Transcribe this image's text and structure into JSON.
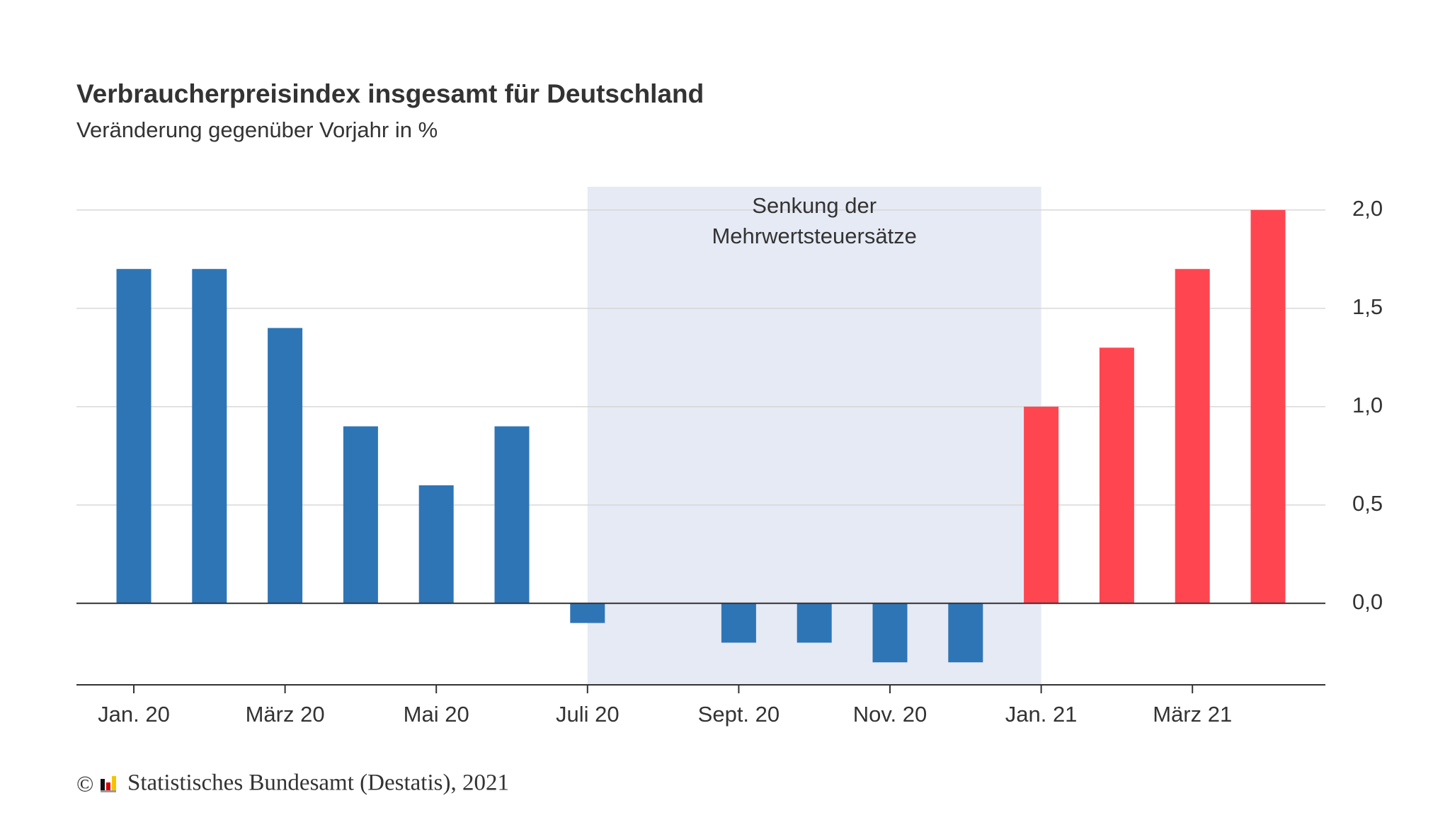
{
  "chart_data": {
    "type": "bar",
    "title": "Verbraucherpreisindex insgesamt für Deutschland",
    "subtitle": "Veränderung gegenüber Vorjahr in %",
    "categories": [
      "Jan. 20",
      null,
      "März 20",
      null,
      "Mai 20",
      null,
      "Juli 20",
      null,
      "Sept. 20",
      null,
      "Nov. 20",
      null,
      "Jan. 21",
      null,
      "März 21",
      null
    ],
    "values": [
      1.7,
      1.7,
      1.4,
      0.9,
      0.6,
      0.9,
      -0.1,
      0.0,
      -0.2,
      -0.2,
      -0.3,
      -0.3,
      1.0,
      1.3,
      1.7,
      2.0
    ],
    "colors": [
      "#2e75b6",
      "#2e75b6",
      "#2e75b6",
      "#2e75b6",
      "#2e75b6",
      "#2e75b6",
      "#2e75b6",
      "#2e75b6",
      "#2e75b6",
      "#2e75b6",
      "#2e75b6",
      "#2e75b6",
      "#ff4650",
      "#ff4650",
      "#ff4650",
      "#ff4650"
    ],
    "ylim": [
      -0.4,
      2.1
    ],
    "yticks": [
      {
        "value": 0,
        "label": "0,0"
      },
      {
        "value": 0.5,
        "label": "0,5"
      },
      {
        "value": 1,
        "label": "1,0"
      },
      {
        "value": 1.5,
        "label": "1,5"
      },
      {
        "value": 2,
        "label": "2,0"
      }
    ],
    "grid": true,
    "shade": {
      "start": "Juli 20",
      "end": "Jan. 21",
      "color": "#e6eaf5",
      "label": [
        "Senkung der",
        "Mehrwertsteuersätze"
      ]
    }
  },
  "footer": {
    "symbol": "©",
    "text": "Statistisches Bundesamt (Destatis), 2021"
  }
}
